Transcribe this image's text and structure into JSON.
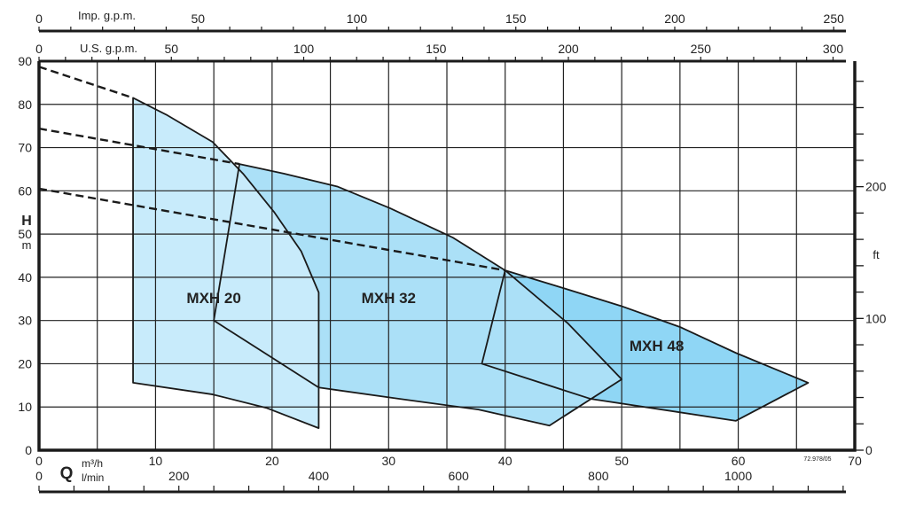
{
  "chart_data": {
    "type": "area",
    "x_primary": {
      "label": "m³/h",
      "ticks": [
        0,
        10,
        20,
        30,
        40,
        50,
        60,
        70
      ],
      "range": [
        0,
        70
      ]
    },
    "x_lmin": {
      "label": "l/min",
      "ticks": [
        0,
        200,
        400,
        600,
        800,
        1000
      ]
    },
    "x_imp": {
      "label": "Imp. g.p.m.",
      "ticks": [
        0,
        50,
        100,
        150,
        200,
        250
      ]
    },
    "x_us": {
      "label": "U.S. g.p.m.",
      "ticks": [
        0,
        50,
        100,
        150,
        200,
        250,
        300
      ]
    },
    "q_symbol": "Q",
    "y_left": {
      "label": "H",
      "unit": "m",
      "ticks": [
        0,
        10,
        20,
        30,
        40,
        50,
        60,
        70,
        80,
        90
      ],
      "range": [
        0,
        90
      ]
    },
    "y_right": {
      "unit": "ft",
      "ticks": [
        0,
        100,
        200
      ]
    },
    "grid": true,
    "code": "72.978/05",
    "series": [
      {
        "name": "MXH 48",
        "color": "#8fd6f5",
        "label_at": [
          53,
          23
        ],
        "polygon": [
          [
            38,
            20
          ],
          [
            40,
            41.6
          ],
          [
            45,
            37.5
          ],
          [
            49.9,
            33.4
          ],
          [
            55,
            28.5
          ],
          [
            59.8,
            22.5
          ],
          [
            66,
            15.6
          ],
          [
            59.8,
            6.8
          ],
          [
            47.3,
            11.9
          ]
        ]
      },
      {
        "name": "MXH 32",
        "color": "#abe0f7",
        "label_at": [
          30,
          34
        ],
        "polygon": [
          [
            15,
            30
          ],
          [
            17.2,
            66.2
          ],
          [
            21,
            64
          ],
          [
            25.6,
            61
          ],
          [
            30.1,
            56
          ],
          [
            35.5,
            49.2
          ],
          [
            40,
            41.6
          ],
          [
            45.4,
            29.3
          ],
          [
            50,
            16.4
          ],
          [
            43.8,
            5.7
          ],
          [
            37.7,
            9.4
          ],
          [
            30.9,
            11.9
          ],
          [
            24,
            14.5
          ]
        ]
      },
      {
        "name": "MXH 20",
        "color": "#c8ebfb",
        "label_at": [
          15,
          34
        ],
        "polygon": [
          [
            8.07,
            81.5
          ],
          [
            11,
            77.5
          ],
          [
            14.9,
            71.3
          ],
          [
            17.5,
            64
          ],
          [
            20.2,
            55
          ],
          [
            22.5,
            46
          ],
          [
            24,
            36.5
          ],
          [
            24,
            5.1
          ],
          [
            19.5,
            9.8
          ],
          [
            14.9,
            12.9
          ],
          [
            8.07,
            15.6
          ]
        ]
      }
    ],
    "dashed": [
      [
        [
          0,
          88.7
        ],
        [
          8.07,
          81.5
        ]
      ],
      [
        [
          0,
          74.4
        ],
        [
          17.2,
          66.2
        ]
      ],
      [
        [
          0,
          60.5
        ],
        [
          40,
          41.6
        ]
      ]
    ]
  }
}
